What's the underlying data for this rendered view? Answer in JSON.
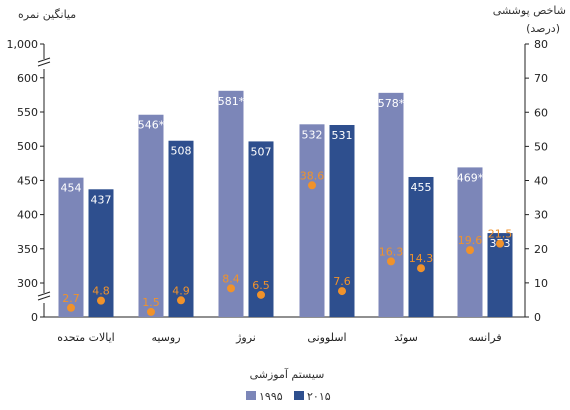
{
  "chart_data": {
    "type": "bar",
    "left_axis": {
      "title": "میانگین نمره",
      "ticks": [
        0,
        300,
        350,
        400,
        450,
        500,
        550,
        600,
        1000
      ],
      "tick_labels": [
        "0",
        "300",
        "350",
        "400",
        "450",
        "500",
        "550",
        "600",
        "1,000"
      ],
      "range": [
        275,
        625
      ],
      "break": true
    },
    "right_axis": {
      "title": "شاخص پوششی",
      "subtitle": "(درصد)",
      "ticks": [
        0,
        10,
        20,
        30,
        40,
        50,
        60,
        70,
        80
      ],
      "range": [
        0,
        80
      ]
    },
    "xlabel": "سیستم آموزشی",
    "categories": [
      "ایالات متحده",
      "روسیه",
      "نروژ",
      "اسلوونی",
      "سوئد",
      "فرانسه"
    ],
    "series": [
      {
        "name": "۱۹۹۵",
        "color": "#7c86b8",
        "values": [
          454,
          546,
          581,
          532,
          578,
          469
        ],
        "labels": [
          "454",
          "546*",
          "581*",
          "532",
          "578*",
          "469*"
        ]
      },
      {
        "name": "۲۰۱۵",
        "color": "#2e4f8e",
        "values": [
          437,
          508,
          507,
          531,
          455,
          373
        ],
        "labels": [
          "437",
          "508",
          "507",
          "531",
          "455",
          "373"
        ]
      }
    ],
    "coverage_series": [
      {
        "name": "۱۹۹۵",
        "color": "#f0922b",
        "values": [
          2.7,
          1.5,
          8.4,
          38.6,
          16.3,
          19.6
        ],
        "labels": [
          "2.7",
          "1.5",
          "8.4",
          "38.6",
          "16.3",
          "19.6"
        ]
      },
      {
        "name": "۲۰۱۵",
        "color": "#f0922b",
        "values": [
          4.8,
          4.9,
          6.5,
          7.6,
          14.3,
          21.5
        ],
        "labels": [
          "4.8",
          "4.9",
          "6.5",
          "7.6",
          "14.3",
          "21.5"
        ]
      }
    ],
    "legend": {
      "placement": "bottom-center",
      "items": [
        "۱۹۹۵",
        "۲۰۱۵"
      ]
    },
    "grid": false
  }
}
